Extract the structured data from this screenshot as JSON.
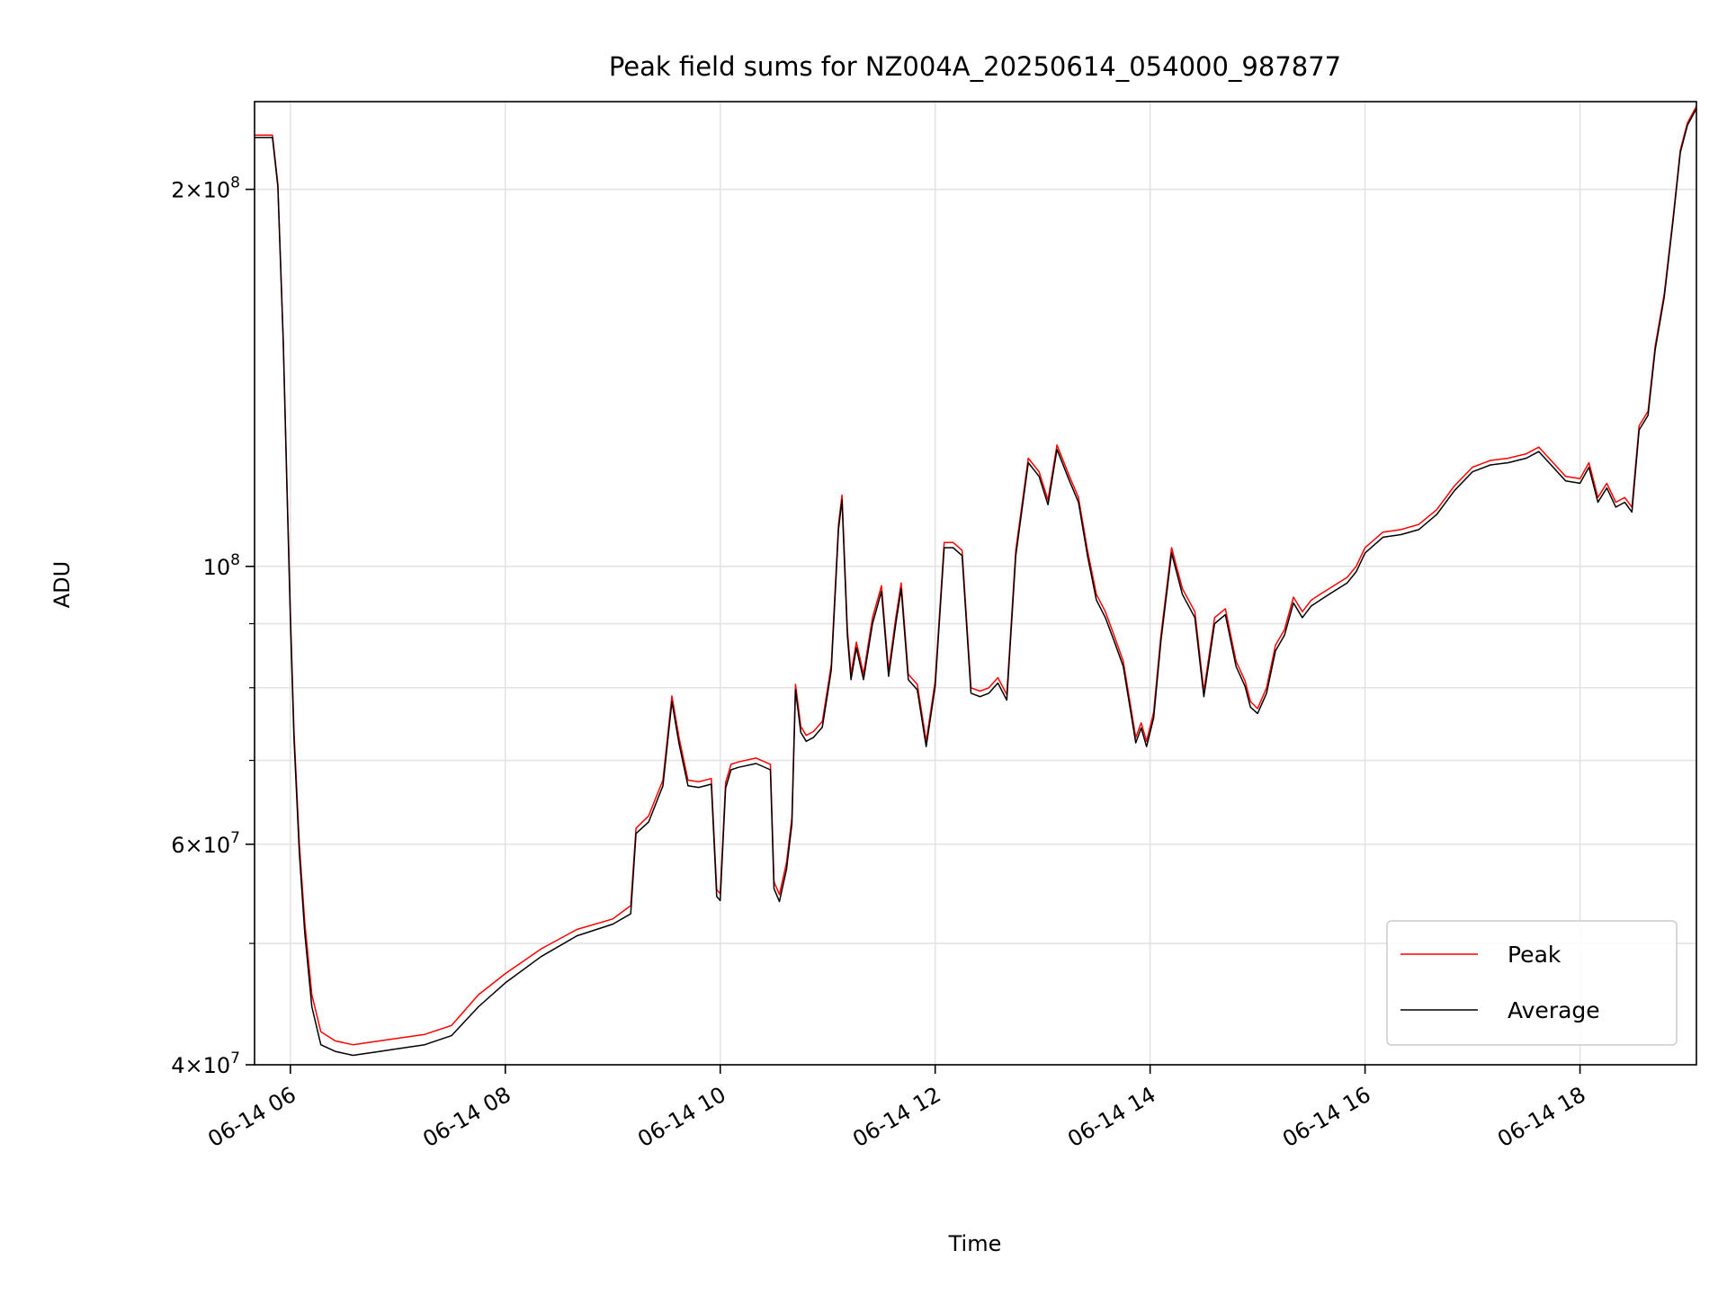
{
  "chart_data": {
    "type": "line",
    "title": "Peak field sums for NZ004A_20250614_054000_987877",
    "xlabel": "Time",
    "ylabel": "ADU",
    "y_scale": "log",
    "ylim": [
      40000000,
      235000000
    ],
    "xlim": [
      "2025-06-14 05:40",
      "2025-06-14 19:05"
    ],
    "grid": true,
    "legend_position": "lower right",
    "x_ticks": [
      {
        "value": "2025-06-14 06:00",
        "label": "06-14 06"
      },
      {
        "value": "2025-06-14 08:00",
        "label": "06-14 08"
      },
      {
        "value": "2025-06-14 10:00",
        "label": "06-14 10"
      },
      {
        "value": "2025-06-14 12:00",
        "label": "06-14 12"
      },
      {
        "value": "2025-06-14 14:00",
        "label": "06-14 14"
      },
      {
        "value": "2025-06-14 16:00",
        "label": "06-14 16"
      },
      {
        "value": "2025-06-14 18:00",
        "label": "06-14 18"
      }
    ],
    "y_ticks_major": [
      {
        "value": 40000000,
        "base": "4",
        "exp": "7"
      },
      {
        "value": 60000000,
        "base": "6",
        "exp": "7"
      },
      {
        "value": 100000000,
        "base": "",
        "exp": "8"
      },
      {
        "value": 200000000,
        "base": "2",
        "exp": "8"
      }
    ],
    "y_ticks_minor": [
      50000000,
      70000000,
      80000000,
      90000000
    ],
    "x": [
      "2025-06-14 05:40",
      "2025-06-14 05:50",
      "2025-06-14 05:53",
      "2025-06-14 05:56",
      "2025-06-14 05:58",
      "2025-06-14 06:00",
      "2025-06-14 06:02",
      "2025-06-14 06:05",
      "2025-06-14 06:08",
      "2025-06-14 06:12",
      "2025-06-14 06:17",
      "2025-06-14 06:25",
      "2025-06-14 06:35",
      "2025-06-14 06:50",
      "2025-06-14 07:00",
      "2025-06-14 07:15",
      "2025-06-14 07:30",
      "2025-06-14 07:45",
      "2025-06-14 08:00",
      "2025-06-14 08:20",
      "2025-06-14 08:40",
      "2025-06-14 09:00",
      "2025-06-14 09:10",
      "2025-06-14 09:13",
      "2025-06-14 09:20",
      "2025-06-14 09:28",
      "2025-06-14 09:33",
      "2025-06-14 09:37",
      "2025-06-14 09:42",
      "2025-06-14 09:48",
      "2025-06-14 09:55",
      "2025-06-14 09:58",
      "2025-06-14 10:00",
      "2025-06-14 10:03",
      "2025-06-14 10:06",
      "2025-06-14 10:10",
      "2025-06-14 10:20",
      "2025-06-14 10:28",
      "2025-06-14 10:30",
      "2025-06-14 10:33",
      "2025-06-14 10:37",
      "2025-06-14 10:40",
      "2025-06-14 10:42",
      "2025-06-14 10:45",
      "2025-06-14 10:48",
      "2025-06-14 10:52",
      "2025-06-14 10:57",
      "2025-06-14 11:00",
      "2025-06-14 11:02",
      "2025-06-14 11:06",
      "2025-06-14 11:08",
      "2025-06-14 11:11",
      "2025-06-14 11:13",
      "2025-06-14 11:16",
      "2025-06-14 11:20",
      "2025-06-14 11:25",
      "2025-06-14 11:30",
      "2025-06-14 11:34",
      "2025-06-14 11:38",
      "2025-06-14 11:41",
      "2025-06-14 11:45",
      "2025-06-14 11:50",
      "2025-06-14 11:55",
      "2025-06-14 12:00",
      "2025-06-14 12:05",
      "2025-06-14 12:10",
      "2025-06-14 12:15",
      "2025-06-14 12:20",
      "2025-06-14 12:25",
      "2025-06-14 12:30",
      "2025-06-14 12:35",
      "2025-06-14 12:40",
      "2025-06-14 12:45",
      "2025-06-14 12:52",
      "2025-06-14 12:58",
      "2025-06-14 13:03",
      "2025-06-14 13:08",
      "2025-06-14 13:15",
      "2025-06-14 13:20",
      "2025-06-14 13:25",
      "2025-06-14 13:30",
      "2025-06-14 13:35",
      "2025-06-14 13:40",
      "2025-06-14 13:45",
      "2025-06-14 13:52",
      "2025-06-14 13:55",
      "2025-06-14 13:58",
      "2025-06-14 14:02",
      "2025-06-14 14:06",
      "2025-06-14 14:12",
      "2025-06-14 14:18",
      "2025-06-14 14:25",
      "2025-06-14 14:30",
      "2025-06-14 14:36",
      "2025-06-14 14:42",
      "2025-06-14 14:48",
      "2025-06-14 14:53",
      "2025-06-14 14:56",
      "2025-06-14 15:00",
      "2025-06-14 15:05",
      "2025-06-14 15:10",
      "2025-06-14 15:15",
      "2025-06-14 15:20",
      "2025-06-14 15:25",
      "2025-06-14 15:30",
      "2025-06-14 15:35",
      "2025-06-14 15:40",
      "2025-06-14 15:45",
      "2025-06-14 15:50",
      "2025-06-14 15:55",
      "2025-06-14 16:00",
      "2025-06-14 16:10",
      "2025-06-14 16:20",
      "2025-06-14 16:30",
      "2025-06-14 16:40",
      "2025-06-14 16:50",
      "2025-06-14 17:00",
      "2025-06-14 17:10",
      "2025-06-14 17:20",
      "2025-06-14 17:30",
      "2025-06-14 17:37",
      "2025-06-14 17:45",
      "2025-06-14 17:52",
      "2025-06-14 18:00",
      "2025-06-14 18:05",
      "2025-06-14 18:10",
      "2025-06-14 18:15",
      "2025-06-14 18:20",
      "2025-06-14 18:25",
      "2025-06-14 18:29",
      "2025-06-14 18:33",
      "2025-06-14 18:38",
      "2025-06-14 18:42",
      "2025-06-14 18:47",
      "2025-06-14 18:52",
      "2025-06-14 18:56",
      "2025-06-14 19:00",
      "2025-06-14 19:05"
    ],
    "series": [
      {
        "name": "Peak",
        "color": "#ff0000",
        "values": [
          221000000,
          221000000,
          202000000,
          152000000,
          118000000,
          92000000,
          74000000,
          60000000,
          52000000,
          45500000,
          42500000,
          41800000,
          41500000,
          41800000,
          42000000,
          42300000,
          43000000,
          45500000,
          47300000,
          49500000,
          51300000,
          52300000,
          53600000,
          61800000,
          63200000,
          67500000,
          78800000,
          73000000,
          67500000,
          67300000,
          67700000,
          55200000,
          54800000,
          67200000,
          69500000,
          69800000,
          70300000,
          69500000,
          56000000,
          54700000,
          58000000,
          63000000,
          80500000,
          74500000,
          73300000,
          73800000,
          75200000,
          80000000,
          83500000,
          108000000,
          114000000,
          89000000,
          82000000,
          87000000,
          82000000,
          91000000,
          96500000,
          82500000,
          91000000,
          97000000,
          82000000,
          80500000,
          72500000,
          81000000,
          104500000,
          104500000,
          103000000,
          80000000,
          79500000,
          80000000,
          81500000,
          79000000,
          103000000,
          122000000,
          119000000,
          113000000,
          125000000,
          118000000,
          113500000,
          103000000,
          95000000,
          92000000,
          88000000,
          84000000,
          73000000,
          75000000,
          72500000,
          76500000,
          88000000,
          103500000,
          96000000,
          92000000,
          79500000,
          91000000,
          92500000,
          84000000,
          81000000,
          78000000,
          77000000,
          80000000,
          86500000,
          89000000,
          94500000,
          92000000,
          94000000,
          95000000,
          96000000,
          97000000,
          98000000,
          100000000,
          103500000,
          106500000,
          107000000,
          108000000,
          111000000,
          116000000,
          120000000,
          121500000,
          122000000,
          123000000,
          124500000,
          121000000,
          118000000,
          117500000,
          121000000,
          113500000,
          116500000,
          112500000,
          113500000,
          111500000,
          129500000,
          133000000,
          150000000,
          165000000,
          190000000,
          215000000,
          226000000,
          233000000
        ]
      },
      {
        "name": "Average",
        "color": "#000000",
        "values": [
          220000000,
          220000000,
          201000000,
          151000000,
          117000000,
          91000000,
          73000000,
          59000000,
          51000000,
          44500000,
          41500000,
          41000000,
          40700000,
          41000000,
          41200000,
          41500000,
          42200000,
          44500000,
          46500000,
          48800000,
          50700000,
          51800000,
          52800000,
          61200000,
          62500000,
          66800000,
          78000000,
          72200000,
          66800000,
          66600000,
          67000000,
          54500000,
          54100000,
          66500000,
          68800000,
          69100000,
          69600000,
          68800000,
          55300000,
          54000000,
          57300000,
          62300000,
          79700000,
          73700000,
          72500000,
          73000000,
          74400000,
          79200000,
          82700000,
          107000000,
          113000000,
          88000000,
          81200000,
          86100000,
          81200000,
          90000000,
          95500000,
          81700000,
          90000000,
          96000000,
          81200000,
          79700000,
          71800000,
          80200000,
          103500000,
          103500000,
          102000000,
          79200000,
          78700000,
          79200000,
          80700000,
          78200000,
          102000000,
          121000000,
          118000000,
          112000000,
          124000000,
          117000000,
          112500000,
          102000000,
          94000000,
          91000000,
          87100000,
          83200000,
          72300000,
          74300000,
          71800000,
          75700000,
          87100000,
          102500000,
          95000000,
          91000000,
          78700000,
          90000000,
          91500000,
          83200000,
          80200000,
          77200000,
          76300000,
          79200000,
          85600000,
          88100000,
          93500000,
          91000000,
          93000000,
          94000000,
          95000000,
          96000000,
          97000000,
          99000000,
          102500000,
          105500000,
          106000000,
          107000000,
          110000000,
          115000000,
          119000000,
          120500000,
          121000000,
          122000000,
          123500000,
          120000000,
          117000000,
          116500000,
          120000000,
          112500000,
          115500000,
          111500000,
          112500000,
          110500000,
          128500000,
          132000000,
          149000000,
          164000000,
          189000000,
          214000000,
          225000000,
          232000000
        ]
      }
    ]
  }
}
